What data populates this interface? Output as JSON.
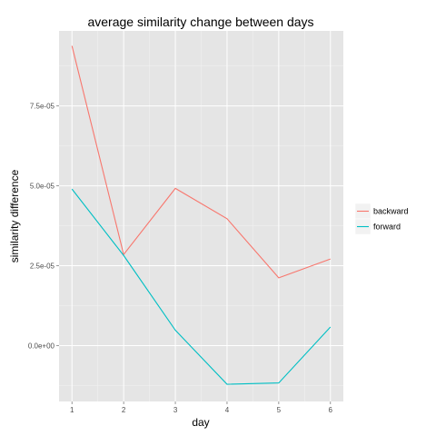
{
  "chart_data": {
    "type": "line",
    "title": "average similarity change between days",
    "xlabel": "day",
    "ylabel": "similarity difference",
    "x": [
      1,
      2,
      3,
      4,
      5,
      6
    ],
    "x_tick_labels": [
      "1",
      "2",
      "3",
      "4",
      "5",
      "6"
    ],
    "y_ticks": [
      0,
      2.5e-05,
      5e-05,
      7.5e-05
    ],
    "y_tick_labels": [
      "0.0e+00",
      "2.5e-05",
      "5.0e-05",
      "7.5e-05"
    ],
    "ylim": [
      -1.75e-05,
      9.85e-05
    ],
    "xlim": [
      0.75,
      6.25
    ],
    "grid": true,
    "legend_position": "right",
    "series": [
      {
        "name": "backward",
        "color": "#F8766D",
        "values": [
          9.38e-05,
          2.85e-05,
          4.92e-05,
          3.97e-05,
          2.12e-05,
          2.71e-05
        ]
      },
      {
        "name": "forward",
        "color": "#00BFC4",
        "values": [
          4.9e-05,
          2.82e-05,
          4.8e-06,
          -1.21e-05,
          -1.17e-05,
          5.8e-06
        ]
      }
    ]
  }
}
